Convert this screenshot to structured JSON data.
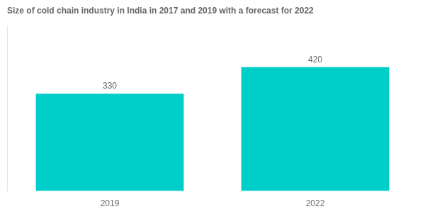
{
  "chart_data": {
    "type": "bar",
    "title": "Size of cold chain industry in India in 2017 and 2019 with a forecast for 2022",
    "categories": [
      "2019",
      "2022"
    ],
    "values": [
      330,
      420
    ],
    "color": "#00CEC9",
    "ylim": [
      0,
      560
    ],
    "grid": false,
    "data_labels": true,
    "tick_labels": "x"
  }
}
